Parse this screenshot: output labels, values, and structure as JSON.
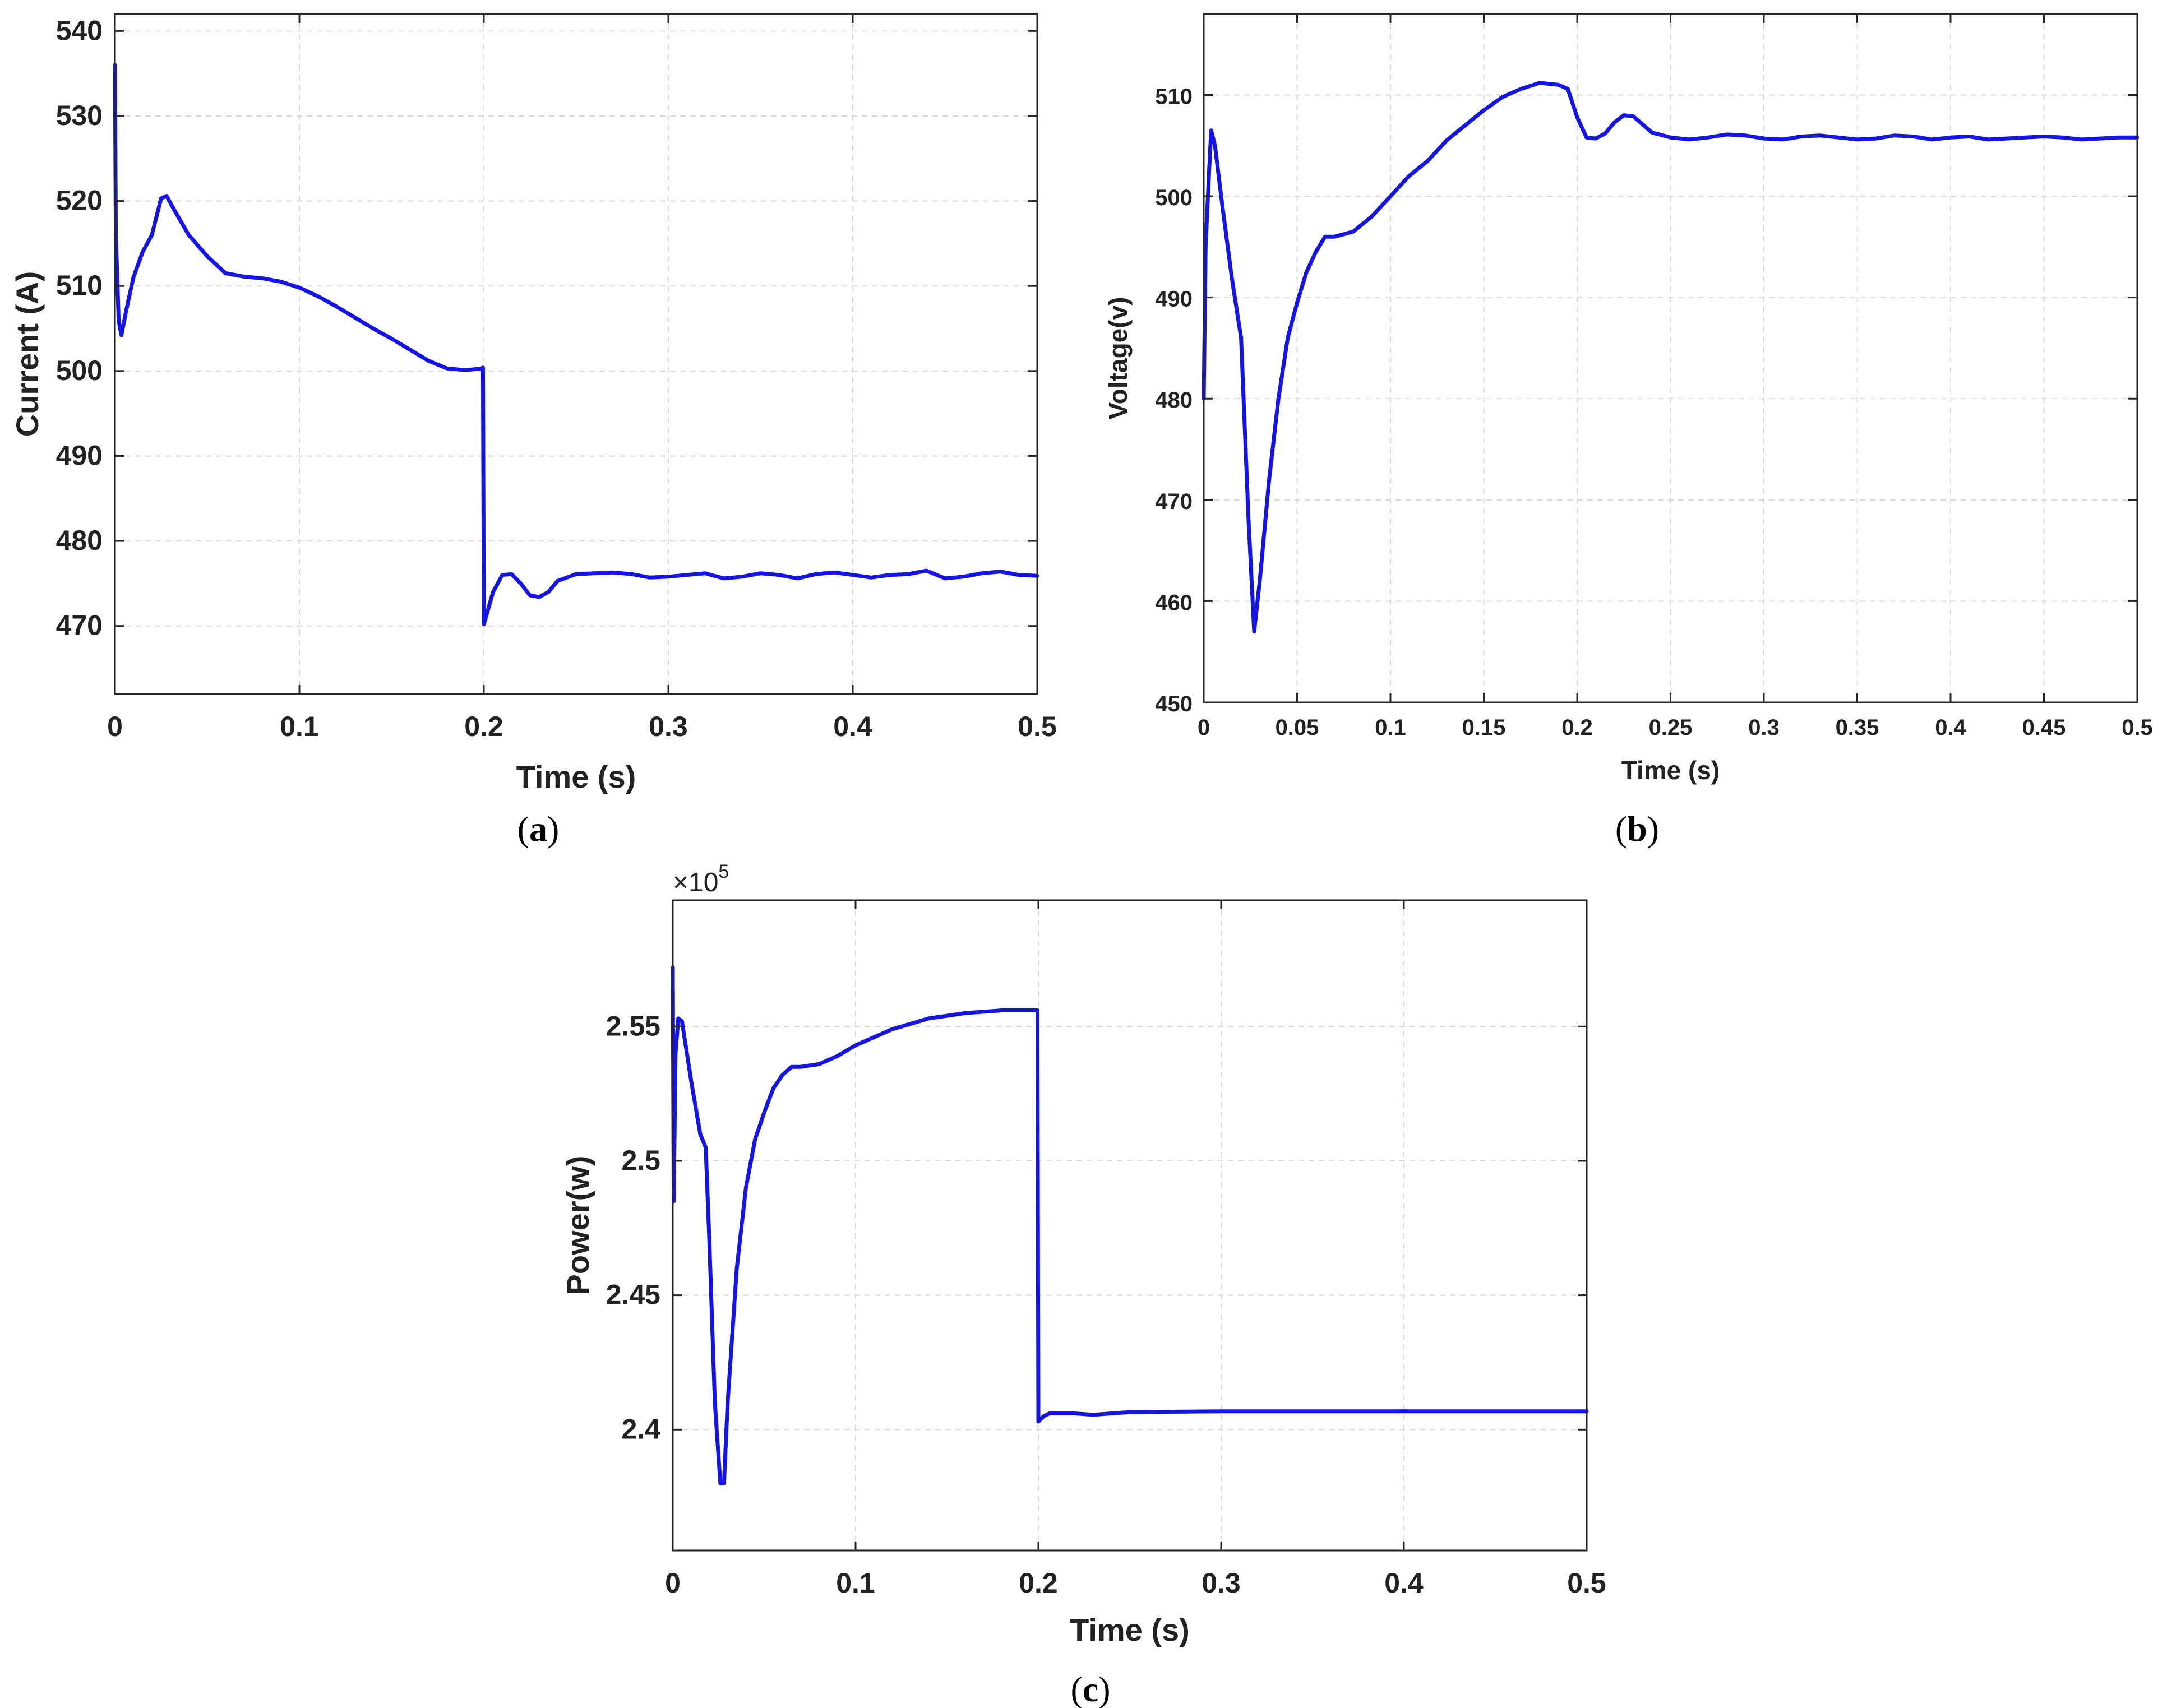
{
  "colors": {
    "series": "#1414e6",
    "frame": "#262626",
    "grid": "#d9d9d9",
    "text": "#222222"
  },
  "chart_data": [
    {
      "id": "a",
      "type": "line",
      "caption": "a",
      "xlabel": "Time (s)",
      "ylabel": "Current (A)",
      "xlim": [
        0,
        0.5
      ],
      "ylim": [
        462,
        542
      ],
      "xticks": [
        0,
        0.1,
        0.2,
        0.3,
        0.4,
        0.5
      ],
      "xtick_labels": [
        "0",
        "0.1",
        "0.2",
        "0.3",
        "0.4",
        "0.5"
      ],
      "yticks": [
        470,
        480,
        490,
        500,
        510,
        520,
        530,
        540
      ],
      "ytick_labels": [
        "470",
        "480",
        "490",
        "500",
        "510",
        "520",
        "530",
        "540"
      ],
      "grid": true,
      "series": [
        {
          "x": [
            0,
            0.0005,
            0.002,
            0.0035,
            0.006,
            0.01,
            0.015,
            0.02,
            0.025,
            0.028,
            0.032,
            0.04,
            0.05,
            0.06,
            0.07,
            0.08,
            0.09,
            0.1,
            0.11,
            0.12,
            0.13,
            0.14,
            0.15,
            0.16,
            0.17,
            0.18,
            0.19,
            0.199,
            0.1995,
            0.2,
            0.205,
            0.21,
            0.215,
            0.22,
            0.225,
            0.23,
            0.235,
            0.24,
            0.25,
            0.26,
            0.27,
            0.28,
            0.29,
            0.3,
            0.31,
            0.32,
            0.33,
            0.34,
            0.35,
            0.36,
            0.37,
            0.38,
            0.39,
            0.4,
            0.41,
            0.42,
            0.43,
            0.44,
            0.45,
            0.46,
            0.47,
            0.48,
            0.49,
            0.5
          ],
          "y": [
            536,
            516,
            506,
            504.2,
            507,
            511,
            514,
            516,
            520.3,
            520.6,
            519,
            516,
            513.5,
            511.5,
            511.1,
            510.9,
            510.5,
            509.8,
            508.8,
            507.6,
            506.3,
            505,
            503.8,
            502.5,
            501.2,
            500.3,
            500.1,
            500.3,
            500.4,
            470.2,
            474,
            476,
            476.1,
            475,
            473.6,
            473.4,
            474,
            475.3,
            476.1,
            476.2,
            476.3,
            476.1,
            475.7,
            475.8,
            476,
            476.2,
            475.6,
            475.8,
            476.2,
            476,
            475.6,
            476.1,
            476.3,
            476,
            475.7,
            476,
            476.1,
            476.5,
            475.6,
            475.8,
            476.2,
            476.4,
            476,
            475.9
          ]
        }
      ]
    },
    {
      "id": "b",
      "type": "line",
      "caption": "b",
      "xlabel": "Time (s)",
      "ylabel": "Voltage(v)",
      "xlim": [
        0,
        0.5
      ],
      "ylim": [
        450,
        518
      ],
      "xticks": [
        0,
        0.05,
        0.1,
        0.15,
        0.2,
        0.25,
        0.3,
        0.35,
        0.4,
        0.45,
        0.5
      ],
      "xtick_labels": [
        "0",
        "0.05",
        "0.1",
        "0.15",
        "0.2",
        "0.25",
        "0.3",
        "0.35",
        "0.4",
        "0.45",
        "0.5"
      ],
      "yticks": [
        450,
        460,
        470,
        480,
        490,
        500,
        510
      ],
      "ytick_labels": [
        "450",
        "460",
        "470",
        "480",
        "490",
        "500",
        "510"
      ],
      "grid": true,
      "series": [
        {
          "x": [
            0,
            0.001,
            0.003,
            0.004,
            0.006,
            0.01,
            0.015,
            0.02,
            0.024,
            0.027,
            0.03,
            0.035,
            0.04,
            0.045,
            0.05,
            0.055,
            0.06,
            0.065,
            0.07,
            0.08,
            0.09,
            0.1,
            0.11,
            0.12,
            0.13,
            0.14,
            0.15,
            0.16,
            0.17,
            0.18,
            0.19,
            0.195,
            0.2,
            0.205,
            0.21,
            0.215,
            0.22,
            0.225,
            0.23,
            0.235,
            0.24,
            0.25,
            0.26,
            0.27,
            0.28,
            0.29,
            0.3,
            0.31,
            0.32,
            0.33,
            0.34,
            0.35,
            0.36,
            0.37,
            0.38,
            0.39,
            0.4,
            0.41,
            0.42,
            0.43,
            0.44,
            0.45,
            0.46,
            0.47,
            0.48,
            0.49,
            0.5
          ],
          "y": [
            480,
            495,
            503,
            506.5,
            505,
            499,
            492,
            486,
            468,
            457,
            462,
            472,
            480,
            486,
            489.5,
            492.5,
            494.5,
            496,
            496,
            496.5,
            498,
            500,
            502,
            503.5,
            505.5,
            507,
            508.5,
            509.8,
            510.6,
            511.2,
            511,
            510.6,
            507.8,
            505.8,
            505.7,
            506.2,
            507.3,
            508,
            507.9,
            507.1,
            506.3,
            505.8,
            505.6,
            505.8,
            506.1,
            506,
            505.7,
            505.6,
            505.9,
            506,
            505.8,
            505.6,
            505.7,
            506,
            505.9,
            505.6,
            505.8,
            505.9,
            505.6,
            505.7,
            505.8,
            505.9,
            505.8,
            505.6,
            505.7,
            505.8,
            505.8
          ]
        }
      ]
    },
    {
      "id": "c",
      "type": "line",
      "caption": "c",
      "xlabel": "Time (s)",
      "ylabel": "Power(w)",
      "exponent": "×10",
      "exponent_power": "5",
      "xlim": [
        0,
        0.5
      ],
      "ylim": [
        2.355,
        2.597
      ],
      "xticks": [
        0,
        0.1,
        0.2,
        0.3,
        0.4,
        0.5
      ],
      "xtick_labels": [
        "0",
        "0.1",
        "0.2",
        "0.3",
        "0.4",
        "0.5"
      ],
      "yticks": [
        2.4,
        2.45,
        2.5,
        2.55
      ],
      "ytick_labels": [
        "2.4",
        "2.45",
        "2.5",
        "2.55"
      ],
      "grid": true,
      "series": [
        {
          "x": [
            0,
            0.0005,
            0.0015,
            0.003,
            0.005,
            0.01,
            0.015,
            0.018,
            0.02,
            0.023,
            0.026,
            0.028,
            0.03,
            0.035,
            0.04,
            0.045,
            0.05,
            0.055,
            0.06,
            0.065,
            0.07,
            0.08,
            0.09,
            0.1,
            0.11,
            0.12,
            0.13,
            0.14,
            0.15,
            0.16,
            0.17,
            0.18,
            0.19,
            0.199,
            0.1995,
            0.2,
            0.203,
            0.206,
            0.21,
            0.22,
            0.23,
            0.24,
            0.25,
            0.3,
            0.35,
            0.4,
            0.45,
            0.5
          ],
          "y": [
            2.572,
            2.485,
            2.54,
            2.553,
            2.552,
            2.53,
            2.51,
            2.505,
            2.47,
            2.41,
            2.38,
            2.38,
            2.41,
            2.46,
            2.49,
            2.508,
            2.518,
            2.527,
            2.532,
            2.535,
            2.535,
            2.536,
            2.539,
            2.543,
            2.546,
            2.549,
            2.551,
            2.553,
            2.554,
            2.555,
            2.5555,
            2.556,
            2.556,
            2.556,
            2.556,
            2.403,
            2.405,
            2.406,
            2.406,
            2.406,
            2.4055,
            2.406,
            2.4065,
            2.4068,
            2.4068,
            2.4068,
            2.4068,
            2.4068
          ]
        }
      ]
    }
  ]
}
